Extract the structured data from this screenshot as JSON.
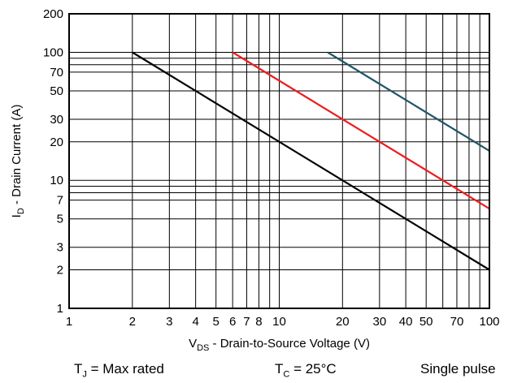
{
  "chart_data": {
    "type": "line",
    "xscale": "log",
    "yscale": "log",
    "xlim": [
      1,
      100
    ],
    "ylim": [
      1,
      200
    ],
    "grid": true,
    "legend": "none",
    "xlabel": {
      "prefix": "V",
      "sub": "DS",
      "rest": " - Drain-to-Source Voltage (V)"
    },
    "ylabel": {
      "prefix": "I",
      "sub": "D",
      "rest": " - Drain Current (A)"
    },
    "x_ticks": [
      1,
      2,
      3,
      4,
      5,
      6,
      7,
      8,
      10,
      20,
      30,
      40,
      50,
      70,
      100
    ],
    "x_tick_labels": [
      "1",
      "2",
      "3",
      "4",
      "5",
      "6",
      "7",
      "8",
      "10",
      "20",
      "30",
      "40",
      "50",
      "70",
      "100"
    ],
    "y_ticks": [
      1,
      2,
      3,
      5,
      7,
      10,
      20,
      30,
      50,
      70,
      100,
      200
    ],
    "y_tick_labels": [
      "1",
      "2",
      "3",
      "5",
      "7",
      "10",
      "20",
      "30",
      "50",
      "70",
      "100",
      "200"
    ],
    "x_gridlines": [
      1,
      2,
      3,
      4,
      5,
      6,
      7,
      8,
      9,
      10,
      20,
      30,
      40,
      50,
      60,
      70,
      80,
      90,
      100
    ],
    "y_gridlines": [
      1,
      2,
      3,
      5,
      7,
      8,
      9,
      10,
      20,
      30,
      50,
      70,
      80,
      90,
      100,
      200
    ],
    "series": [
      {
        "color": "#000000",
        "x": [
          2,
          100
        ],
        "y": [
          100,
          2
        ]
      },
      {
        "color": "#ee1c1c",
        "x": [
          6,
          100
        ],
        "y": [
          100,
          6
        ]
      },
      {
        "color": "#1f5566",
        "x": [
          17,
          100
        ],
        "y": [
          100,
          17
        ]
      }
    ]
  },
  "footer": {
    "tj": {
      "prefix": "T",
      "sub": "J",
      "rest": " = Max rated"
    },
    "tc": {
      "prefix": "T",
      "sub": "C",
      "rest": " = 25°C"
    },
    "pulse": "Single pulse"
  }
}
